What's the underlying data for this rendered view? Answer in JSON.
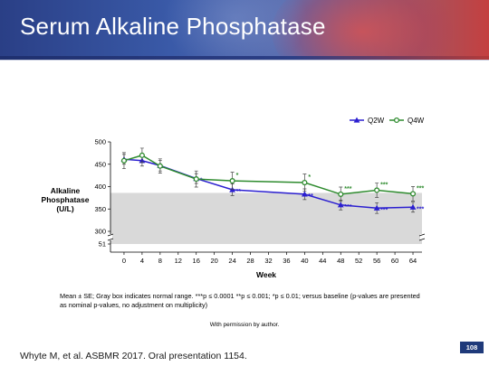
{
  "slide": {
    "title": "Serum Alkaline Phosphatase",
    "footnote": "Mean ± SE; Gray box indicates normal range. ***p ≤ 0.0001 **p ≤ 0.001; *p ≤ 0.01; versus baseline (p-values are presented as nominal p-values, no adjustment on multiplicity)",
    "permission": "With permission by author.",
    "citation": "Whyte M, et al. ASBMR 2017. Oral presentation 1154.",
    "page_number": "108"
  },
  "chart_data": {
    "type": "line",
    "xlabel": "Week",
    "ylabel_lines": [
      "Alkaline",
      "Phosphatase",
      "(U/L)"
    ],
    "x_ticks": [
      0,
      4,
      8,
      12,
      16,
      20,
      24,
      28,
      32,
      36,
      40,
      44,
      48,
      52,
      56,
      60,
      64
    ],
    "y_ticks": [
      300,
      350,
      400,
      450,
      500
    ],
    "y_break_label": "51",
    "ylim": [
      300,
      500
    ],
    "xlim": [
      -3,
      66
    ],
    "normal_range": [
      300,
      386
    ],
    "legend_position": "top-right",
    "series": [
      {
        "name": "Q2W",
        "color": "#2b1fd0",
        "marker": "triangle",
        "x": [
          0,
          4,
          8,
          16,
          24,
          40,
          48,
          56,
          64
        ],
        "y": [
          461,
          458,
          447,
          418,
          393,
          383,
          359,
          352,
          354
        ],
        "err": [
          11,
          12,
          12,
          11,
          13,
          12,
          11,
          12,
          11
        ],
        "sig": [
          "",
          "",
          "",
          "*",
          "**",
          "**",
          "***",
          "***",
          "***"
        ]
      },
      {
        "name": "Q4W",
        "color": "#2e8b2e",
        "marker": "circle",
        "x": [
          0,
          4,
          8,
          16,
          24,
          40,
          48,
          56,
          64
        ],
        "y": [
          458,
          470,
          446,
          417,
          413,
          409,
          383,
          392,
          384
        ],
        "err": [
          18,
          16,
          16,
          18,
          19,
          19,
          16,
          16,
          16
        ],
        "sig": [
          "",
          "",
          "",
          "",
          "*",
          "*",
          "***",
          "***",
          "***"
        ]
      }
    ]
  }
}
